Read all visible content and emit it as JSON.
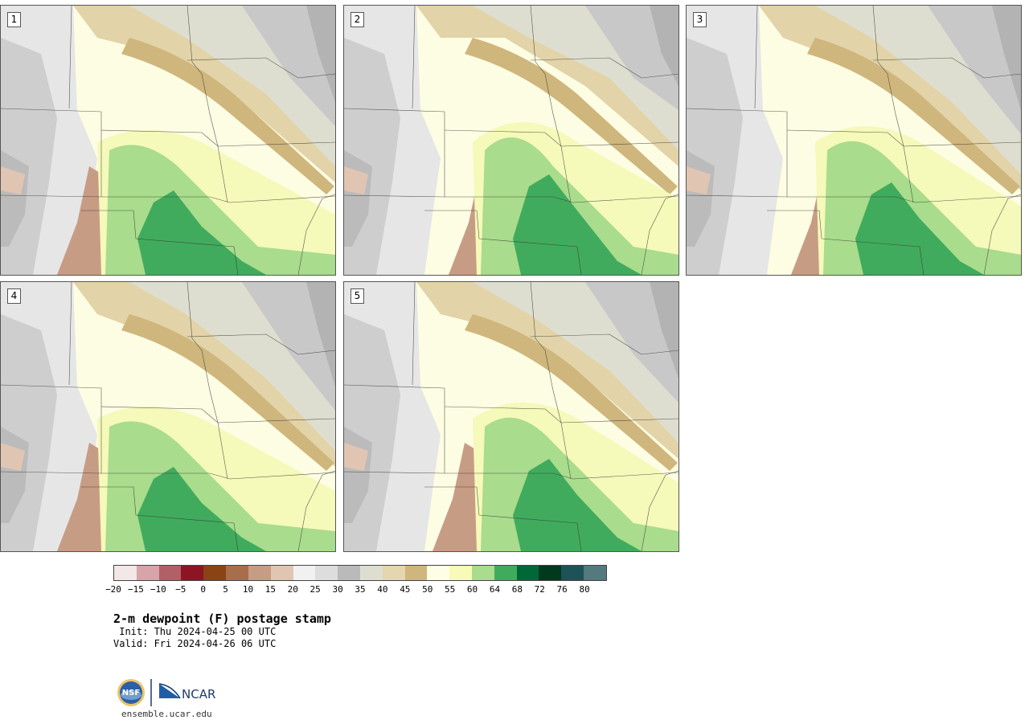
{
  "panels": [
    {
      "label": "1"
    },
    {
      "label": "2"
    },
    {
      "label": "3"
    },
    {
      "label": "4"
    },
    {
      "label": "5"
    }
  ],
  "colorbar": {
    "colors": [
      "#f3e7e7",
      "#d6a4a9",
      "#b25f65",
      "#8b1522",
      "#8a4413",
      "#a86e4c",
      "#c79c85",
      "#e1c5b3",
      "#f1f1f1",
      "#dddddd",
      "#bababa",
      "#deded0",
      "#e4d6ae",
      "#cfb67c",
      "#fefee6",
      "#f7fbb7",
      "#a9dc8c",
      "#41ab5d",
      "#006837",
      "#00391d",
      "#1d5256",
      "#54797e"
    ],
    "ticks": [
      "−20",
      "−15",
      "−10",
      "−5",
      "0",
      "5",
      "10",
      "15",
      "20",
      "25",
      "30",
      "35",
      "40",
      "45",
      "50",
      "55",
      "60",
      "64",
      "68",
      "72",
      "76",
      "80"
    ]
  },
  "title": "2-m dewpoint (F) postage stamp",
  "init": " Init: Thu 2024-04-25 00 UTC",
  "valid": "Valid: Fri 2024-04-26 06 UTC",
  "logos": {
    "nsf": "NSF",
    "ncar": "NCAR"
  },
  "site": "ensemble.ucar.edu"
}
